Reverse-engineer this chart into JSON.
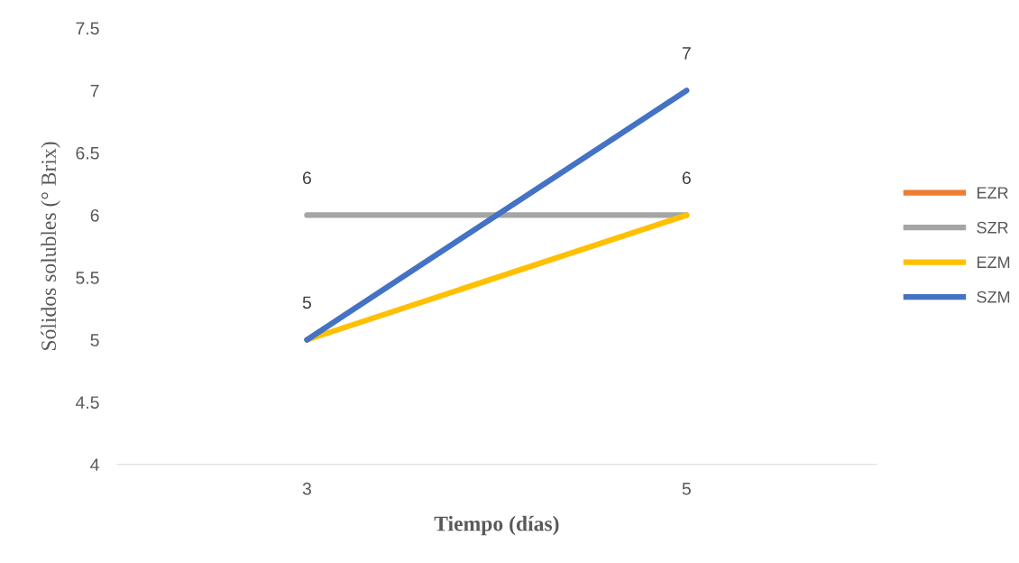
{
  "chart_data": {
    "type": "line",
    "xlabel": "Tiempo (días)",
    "ylabel": "Sólidos solubles (° Brix)",
    "categories": [
      "3",
      "5"
    ],
    "series": [
      {
        "name": "EZR",
        "color": "#ed7d31",
        "values": [
          null,
          null
        ]
      },
      {
        "name": "SZR",
        "color": "#a5a5a5",
        "values": [
          6,
          6
        ],
        "value_labels": [
          "6",
          "6"
        ]
      },
      {
        "name": "EZM",
        "color": "#ffc000",
        "values": [
          5,
          6
        ],
        "value_labels": [
          "5",
          null
        ]
      },
      {
        "name": "SZM",
        "color": "#4472c4",
        "values": [
          5,
          7
        ],
        "value_labels": [
          null,
          "7"
        ]
      }
    ],
    "ylim": [
      4,
      7.5
    ],
    "yticks": [
      4,
      4.5,
      5,
      5.5,
      6,
      6.5,
      7,
      7.5
    ],
    "grid": false,
    "legend": "right",
    "marker": "none",
    "line_style": "solid"
  }
}
